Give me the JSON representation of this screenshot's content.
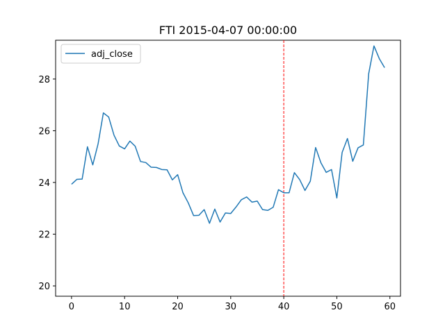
{
  "chart_data": {
    "type": "line",
    "title": "FTI 2015-04-07 00:00:00",
    "xlabel": "",
    "ylabel": "",
    "xlim": [
      -3,
      62
    ],
    "ylim": [
      19.6,
      29.5
    ],
    "xticks": [
      0,
      10,
      20,
      30,
      40,
      50,
      60
    ],
    "yticks": [
      20,
      22,
      24,
      26,
      28
    ],
    "grid": false,
    "legend": {
      "placement": "top-left"
    },
    "series": [
      {
        "name": "adj_close",
        "color": "#1f77b4",
        "x": [
          0,
          1,
          2,
          3,
          4,
          5,
          6,
          7,
          8,
          9,
          10,
          11,
          12,
          13,
          14,
          15,
          16,
          17,
          18,
          19,
          20,
          21,
          22,
          23,
          24,
          25,
          26,
          27,
          28,
          29,
          30,
          31,
          32,
          33,
          34,
          35,
          36,
          37,
          38,
          39,
          40,
          41,
          42,
          43,
          44,
          45,
          46,
          47,
          48,
          49,
          50,
          51,
          52,
          53,
          54,
          55,
          56,
          57,
          58,
          59
        ],
        "y": [
          23.93,
          24.12,
          24.13,
          25.38,
          24.68,
          25.49,
          26.69,
          26.53,
          25.83,
          25.41,
          25.3,
          25.6,
          25.4,
          24.81,
          24.77,
          24.59,
          24.58,
          24.5,
          24.49,
          24.1,
          24.3,
          23.6,
          23.21,
          22.72,
          22.73,
          22.95,
          22.42,
          22.97,
          22.47,
          22.82,
          22.8,
          23.05,
          23.33,
          23.44,
          23.24,
          23.28,
          22.95,
          22.92,
          23.04,
          23.72,
          23.6,
          23.6,
          24.38,
          24.11,
          23.69,
          24.05,
          25.35,
          24.76,
          24.39,
          24.5,
          23.4,
          25.16,
          25.7,
          24.82,
          25.34,
          25.45,
          28.2,
          29.28,
          28.79,
          28.44
        ]
      }
    ],
    "annotations": [
      {
        "type": "vline",
        "x": 40,
        "color": "#ff0000",
        "style": "dashed"
      }
    ]
  }
}
